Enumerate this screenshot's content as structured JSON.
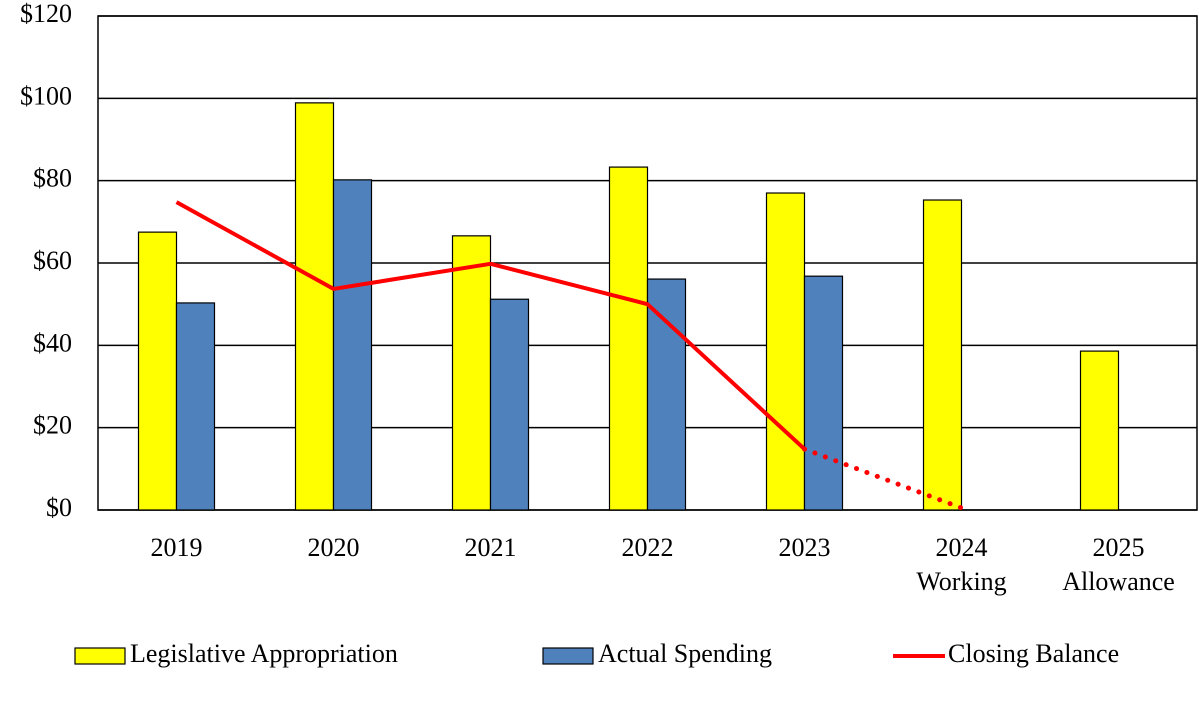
{
  "chart_data": {
    "type": "bar-line",
    "categories": [
      "2019",
      "2020",
      "2021",
      "2022",
      "2023",
      [
        "2024",
        "Working"
      ],
      [
        "2025",
        "Allowance"
      ]
    ],
    "series": [
      {
        "name": "Legislative Appropriation",
        "type": "bar",
        "color": "#ffff00",
        "values": [
          67.5,
          98.9,
          66.6,
          83.3,
          77.0,
          75.3,
          38.6
        ]
      },
      {
        "name": "Actual Spending",
        "type": "bar",
        "color": "#4f81bd",
        "values": [
          50.3,
          80.2,
          51.2,
          56.1,
          56.8,
          null,
          null
        ]
      },
      {
        "name": "Closing Balance",
        "type": "line",
        "color": "#ff0000",
        "values": [
          74.8,
          53.7,
          59.8,
          50.0,
          14.8,
          0.5,
          null
        ],
        "dashed_from_index": 4
      }
    ],
    "ylim": [
      0,
      120
    ],
    "yticks": [
      {
        "value": 0,
        "label": "$0"
      },
      {
        "value": 20,
        "label": "$20"
      },
      {
        "value": 40,
        "label": "$40"
      },
      {
        "value": 60,
        "label": "$60"
      },
      {
        "value": 80,
        "label": "$80"
      },
      {
        "value": 100,
        "label": "$100"
      },
      {
        "value": 120,
        "label": "$120"
      }
    ],
    "grid": true,
    "legend": "bottom"
  }
}
